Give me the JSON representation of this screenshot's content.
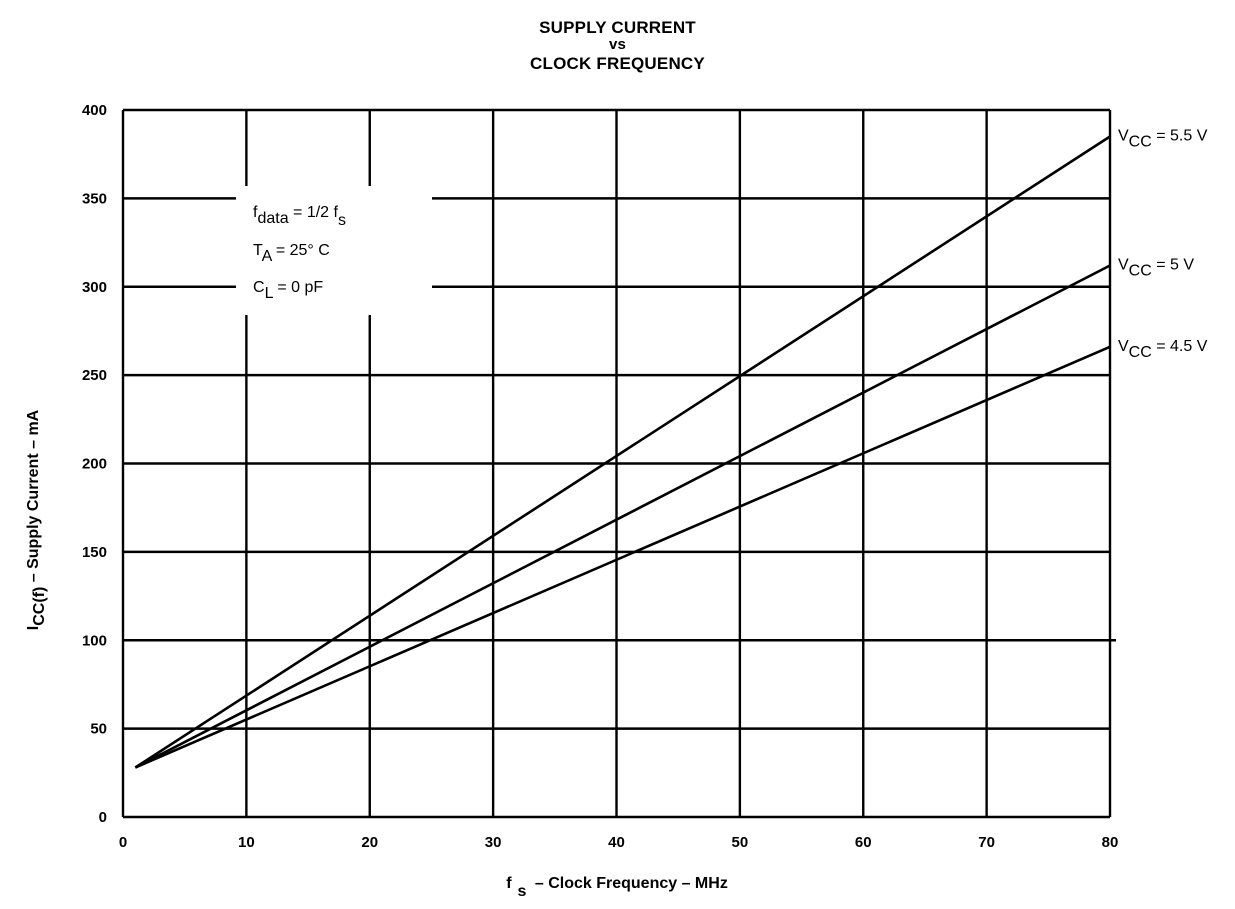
{
  "chart_data": {
    "type": "line",
    "title_lines": [
      "SUPPLY CURRENT",
      "vs",
      "CLOCK FREQUENCY"
    ],
    "xlabel": {
      "main": "f",
      "sub": "s",
      "rest": " – Clock Frequency – MHz"
    },
    "ylabel": {
      "main": "I",
      "sub": "CC(f)",
      "rest": " – Supply Current – mA"
    },
    "xlim": [
      0,
      80
    ],
    "ylim": [
      0,
      400
    ],
    "xticks": [
      0,
      10,
      20,
      30,
      40,
      50,
      60,
      70,
      80
    ],
    "yticks": [
      0,
      50,
      100,
      150,
      200,
      250,
      300,
      350,
      400
    ],
    "grid": true,
    "notes": [
      {
        "main": "f",
        "sub": "data",
        "rest": " = 1/2 f",
        "sub2": "s"
      },
      {
        "main": "T",
        "sub": "A",
        "rest": " = 25° C",
        "sub2": ""
      },
      {
        "main": "C",
        "sub": "L",
        "rest": " = 0 pF",
        "sub2": ""
      }
    ],
    "series": [
      {
        "name": "VCC = 5.5 V",
        "label": {
          "main": "V",
          "sub": "CC",
          "rest": " = 5.5 V"
        },
        "x": [
          1,
          80
        ],
        "y": [
          28,
          385
        ]
      },
      {
        "name": "VCC = 5 V",
        "label": {
          "main": "V",
          "sub": "CC",
          "rest": " = 5 V"
        },
        "x": [
          1,
          80
        ],
        "y": [
          28,
          312
        ]
      },
      {
        "name": "VCC = 4.5 V",
        "label": {
          "main": "V",
          "sub": "CC",
          "rest": " = 4.5 V"
        },
        "x": [
          1,
          80
        ],
        "y": [
          28,
          266
        ]
      }
    ]
  }
}
